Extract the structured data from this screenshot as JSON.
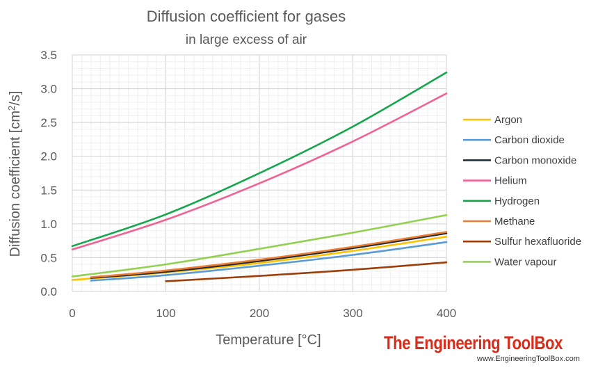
{
  "chart_data": {
    "type": "line",
    "title": "Diffusion coefficient for gases",
    "subtitle": "in large excess of air",
    "xlabel": "Temperature [°C]",
    "ylabel": "Diffusion coefficient [cm²/s]",
    "xlim": [
      0,
      400
    ],
    "ylim": [
      0,
      3.5
    ],
    "xticks": [
      "0",
      "100",
      "200",
      "300",
      "400"
    ],
    "yticks": [
      "0.0",
      "0.5",
      "1.0",
      "1.5",
      "2.0",
      "2.5",
      "3.0",
      "3.5"
    ],
    "grid": true,
    "legend_position": "right",
    "series": [
      {
        "name": "Argon",
        "color": "#ffc000",
        "x": [
          0,
          20,
          100,
          200,
          300,
          400
        ],
        "y": [
          0.17,
          0.19,
          0.28,
          0.42,
          0.6,
          0.81
        ]
      },
      {
        "name": "Carbon dioxide",
        "color": "#5b9bd5",
        "x": [
          20,
          100,
          200,
          300,
          400
        ],
        "y": [
          0.16,
          0.24,
          0.38,
          0.54,
          0.73
        ]
      },
      {
        "name": "Carbon monoxide",
        "color": "#1f2d3d",
        "x": [
          20,
          100,
          200,
          300,
          400
        ],
        "y": [
          0.2,
          0.29,
          0.45,
          0.64,
          0.86
        ]
      },
      {
        "name": "Helium",
        "color": "#f06292",
        "x": [
          0,
          100,
          200,
          300,
          400
        ],
        "y": [
          0.62,
          1.06,
          1.6,
          2.22,
          2.93
        ]
      },
      {
        "name": "Hydrogen",
        "color": "#14a64b",
        "x": [
          0,
          100,
          200,
          300,
          400
        ],
        "y": [
          0.67,
          1.14,
          1.75,
          2.44,
          3.24
        ]
      },
      {
        "name": "Methane",
        "color": "#ed7d31",
        "x": [
          20,
          100,
          200,
          300,
          400
        ],
        "y": [
          0.21,
          0.31,
          0.47,
          0.66,
          0.88
        ]
      },
      {
        "name": "Sulfur hexafluoride",
        "color": "#9c3d0a",
        "x": [
          100,
          200,
          300,
          400
        ],
        "y": [
          0.15,
          0.23,
          0.32,
          0.43
        ]
      },
      {
        "name": "Water vapour",
        "color": "#92d050",
        "x": [
          0,
          100,
          200,
          300,
          400
        ],
        "y": [
          0.22,
          0.4,
          0.63,
          0.87,
          1.13
        ]
      }
    ]
  },
  "branding": {
    "name": "The Engineering ToolBox",
    "url": "www.EngineeringToolBox.com"
  }
}
